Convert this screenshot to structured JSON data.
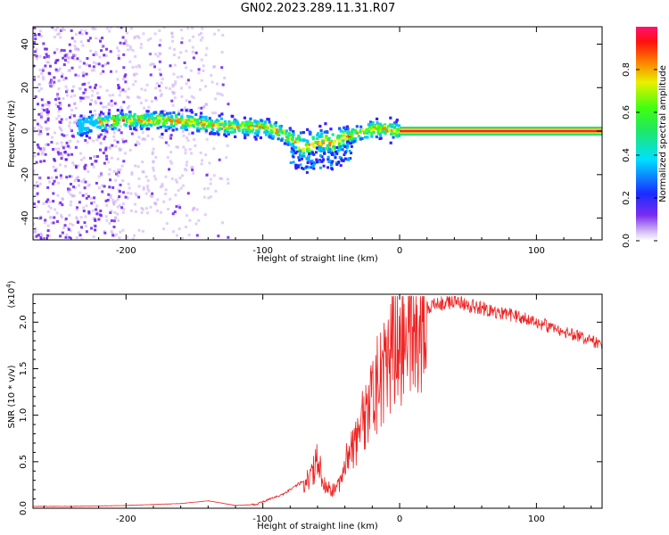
{
  "title": "GN02.2023.289.11.31.R07",
  "chart_data": [
    {
      "type": "heatmap",
      "xlabel": "Height of straight line (km)",
      "ylabel": "Frequency (Hz)",
      "xlim": [
        -268,
        148
      ],
      "ylim": [
        -50,
        48
      ],
      "xticks": [
        -200,
        -100,
        0,
        100
      ],
      "yticks": [
        -40,
        -20,
        0,
        20,
        40
      ],
      "colorbar": {
        "label": "Normalized spectral amplitude",
        "range": [
          0.0,
          1.0
        ],
        "ticks": [
          0.0,
          0.2,
          0.4,
          0.6,
          0.8
        ]
      },
      "ridge": [
        {
          "x": -235,
          "y": 2
        },
        {
          "x": -220,
          "y": 4
        },
        {
          "x": -200,
          "y": 5
        },
        {
          "x": -175,
          "y": 5
        },
        {
          "x": -150,
          "y": 4
        },
        {
          "x": -125,
          "y": 2
        },
        {
          "x": -110,
          "y": 2
        },
        {
          "x": -100,
          "y": 2
        },
        {
          "x": -90,
          "y": 0
        },
        {
          "x": -80,
          "y": -3
        },
        {
          "x": -70,
          "y": -8
        },
        {
          "x": -60,
          "y": -5
        },
        {
          "x": -50,
          "y": -6
        },
        {
          "x": -40,
          "y": -3
        },
        {
          "x": -30,
          "y": -1
        },
        {
          "x": -20,
          "y": 1
        },
        {
          "x": -10,
          "y": 1
        },
        {
          "x": 0,
          "y": 0
        },
        {
          "x": 148,
          "y": 0
        }
      ]
    },
    {
      "type": "line",
      "xlabel": "Height of straight line (km)",
      "ylabel": "SNR (10 * v/v)",
      "y_multiplier": "(x10^4)",
      "xlim": [
        -268,
        148
      ],
      "ylim": [
        0,
        2.3
      ],
      "xticks": [
        -200,
        -100,
        0,
        100
      ],
      "yticks": [
        0.0,
        0.5,
        1.0,
        1.5,
        2.0
      ],
      "color": "#ee2222",
      "series": [
        {
          "x": [
            -268,
            -240,
            -200,
            -160,
            -140,
            -120,
            -105,
            -95,
            -85,
            -75,
            -65,
            -60,
            -55,
            -50,
            -45,
            -40,
            -35,
            -30,
            -25,
            -20,
            -15,
            -10,
            -5,
            0,
            10,
            20,
            30,
            40,
            60,
            80,
            100,
            120,
            148
          ],
          "values": [
            0.02,
            0.02,
            0.03,
            0.05,
            0.08,
            0.03,
            0.04,
            0.1,
            0.15,
            0.25,
            0.35,
            0.6,
            0.3,
            0.2,
            0.25,
            0.5,
            0.7,
            0.9,
            1.1,
            1.3,
            1.5,
            1.7,
            1.85,
            1.95,
            2.05,
            2.15,
            2.2,
            2.22,
            2.15,
            2.08,
            2.0,
            1.9,
            1.76
          ]
        }
      ]
    }
  ]
}
